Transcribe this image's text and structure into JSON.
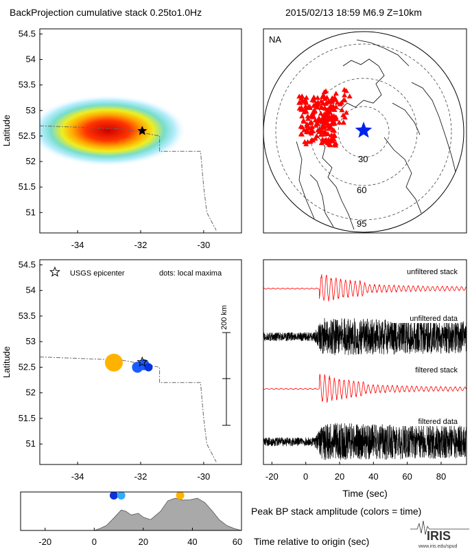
{
  "header": {
    "title": "BackProjection cumulative stack 0.25to1.0Hz",
    "event": "2015/02/13 18:59  M6.9  Z=10km"
  },
  "colors": {
    "red": "#ff0000",
    "blue": "#0022ee",
    "orange": "#ffb300",
    "blue_dot": "#1a5cff",
    "blue_dot2": "#0a33dd",
    "light_blue_dot": "#33aaff",
    "gray_fill": "#a9a9a9"
  },
  "chart_data": [
    {
      "id": "cumulative-stack-map",
      "type": "heatmap",
      "ylabel": "Latitude",
      "xlim": [
        -35.2,
        -28.8
      ],
      "ylim": [
        50.6,
        54.6
      ],
      "x_ticks": [
        -34,
        -32,
        -30
      ],
      "y_ticks": [
        51,
        51.5,
        52,
        52.5,
        53,
        53.5,
        54,
        54.5
      ],
      "peak": {
        "lon": -32.9,
        "lat": 52.58
      },
      "epicenter": {
        "lon": -31.95,
        "lat": 52.6,
        "marker": "black-star"
      },
      "coastline": [
        [
          -35.2,
          52.7
        ],
        [
          -32.6,
          52.64
        ],
        [
          -31.4,
          52.5
        ],
        [
          -31.4,
          52.2
        ],
        [
          -30.1,
          52.2
        ],
        [
          -30.0,
          51.5
        ],
        [
          -29.9,
          51.0
        ],
        [
          -29.6,
          50.65
        ]
      ]
    },
    {
      "id": "station-map",
      "type": "map",
      "region_label": "NA",
      "distance_ring_labels": [
        "30",
        "60",
        "95"
      ],
      "epicenter_marker": "blue-star",
      "stations": "red-triangles"
    },
    {
      "id": "local-maxima-map",
      "type": "scatter",
      "ylabel": "Latitude",
      "legend": {
        "epicenter": "USGS epicenter",
        "dots": "dots: local maxima"
      },
      "scale_bar_label": "200 km",
      "xlim": [
        -35.2,
        -28.8
      ],
      "ylim": [
        50.6,
        54.6
      ],
      "x_ticks": [
        -34,
        -32,
        -30
      ],
      "y_ticks": [
        51,
        51.5,
        52,
        52.5,
        53,
        53.5,
        54,
        54.5
      ],
      "epicenter": {
        "lon": -31.95,
        "lat": 52.6
      },
      "points": [
        {
          "lon": -32.85,
          "lat": 52.59,
          "color": "#ffb300",
          "size": 13
        },
        {
          "lon": -32.1,
          "lat": 52.5,
          "color": "#1a5cff",
          "size": 8
        },
        {
          "lon": -31.9,
          "lat": 52.55,
          "color": "#1a5cff",
          "size": 8
        },
        {
          "lon": -31.75,
          "lat": 52.5,
          "color": "#0a33dd",
          "size": 6
        }
      ],
      "coastline": [
        [
          -35.2,
          52.7
        ],
        [
          -32.6,
          52.64
        ],
        [
          -31.4,
          52.5
        ],
        [
          -31.4,
          52.2
        ],
        [
          -30.1,
          52.2
        ],
        [
          -30.0,
          51.5
        ],
        [
          -29.9,
          51.0
        ],
        [
          -29.6,
          50.65
        ]
      ]
    },
    {
      "id": "waveforms",
      "type": "line",
      "xlabel": "Time (sec)",
      "xlim": [
        -25,
        95
      ],
      "x_ticks": [
        -20,
        0,
        20,
        40,
        60,
        80
      ],
      "traces": [
        {
          "name": "unfiltered stack",
          "color": "#ff0000"
        },
        {
          "name": "unfiltered data",
          "color": "#000000"
        },
        {
          "name": "filtered stack",
          "color": "#ff0000"
        },
        {
          "name": "filtered data",
          "color": "#000000"
        }
      ]
    },
    {
      "id": "peak-amplitude",
      "type": "area",
      "title": "Peak BP stack amplitude (colors = time)",
      "xlabel": "Time relative to origin (sec)",
      "xlim": [
        -30,
        60
      ],
      "x_ticks": [
        -20,
        0,
        20,
        40,
        60
      ],
      "x": [
        -30,
        0,
        2,
        5,
        8,
        11,
        13,
        15,
        18,
        20,
        23,
        27,
        30,
        33,
        36,
        39,
        42,
        45,
        48,
        51,
        54,
        57,
        60
      ],
      "values": [
        0,
        0,
        0.05,
        0.15,
        0.38,
        0.62,
        0.58,
        0.47,
        0.52,
        0.4,
        0.33,
        0.58,
        0.9,
        0.98,
        0.92,
        0.93,
        0.98,
        0.85,
        0.6,
        0.32,
        0.15,
        0.06,
        0
      ],
      "markers": [
        {
          "x": 8,
          "color": "#0a33dd"
        },
        {
          "x": 11,
          "color": "#33aaff"
        },
        {
          "x": 35,
          "color": "#ffb300"
        }
      ]
    }
  ],
  "footer": {
    "logo": "IRIS",
    "url": "www.iris.edu/spud"
  }
}
